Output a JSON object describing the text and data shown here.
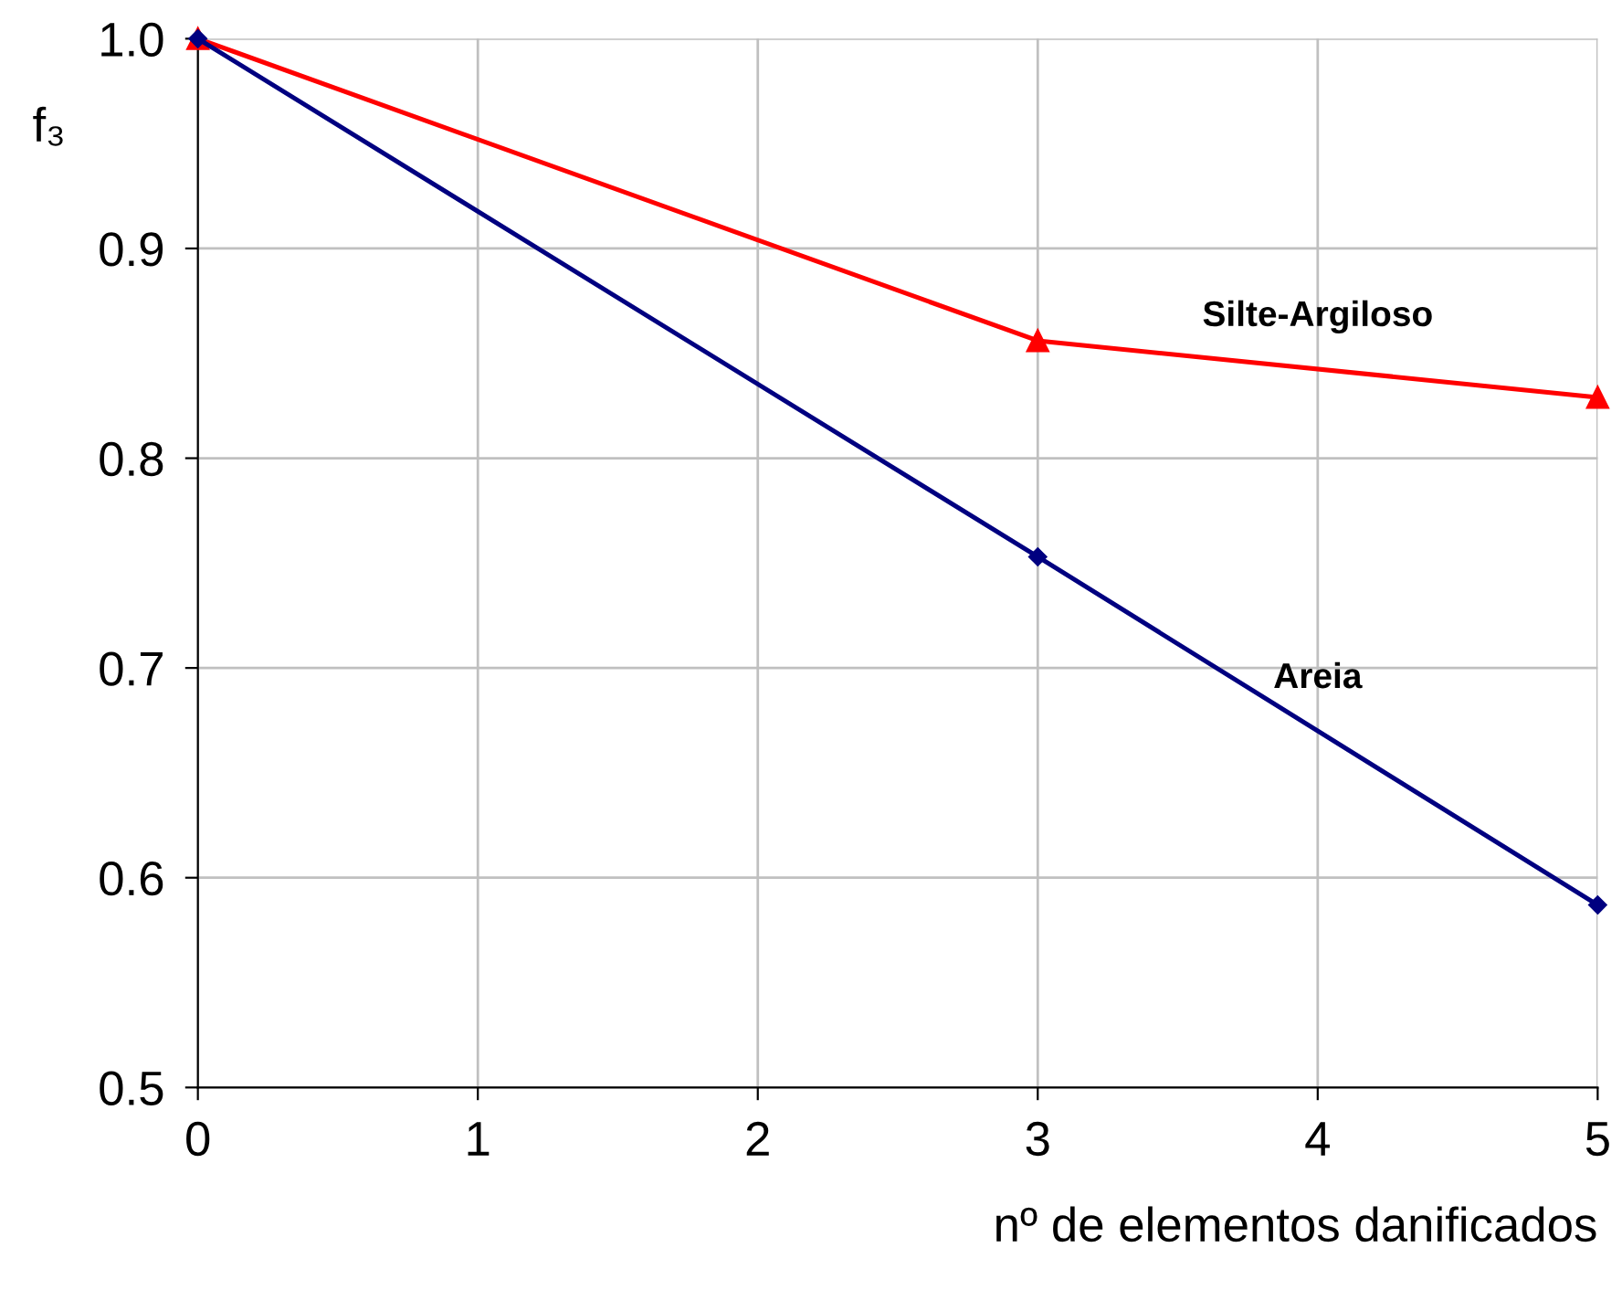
{
  "chart_data": {
    "type": "line",
    "xlabel": "nº de elementos danificados",
    "ylabel": "f₃",
    "x": [
      0,
      3,
      5
    ],
    "series": [
      {
        "name": "Silte-Argiloso",
        "color": "#ff0000",
        "values": [
          1.0,
          0.856,
          0.829
        ],
        "marker": "triangle"
      },
      {
        "name": "Areia",
        "color": "#000080",
        "values": [
          1.0,
          0.753,
          0.587
        ],
        "marker": "diamond"
      }
    ],
    "xlim": [
      0,
      5
    ],
    "xticks": [
      0,
      1,
      2,
      3,
      4,
      5
    ],
    "ylim": [
      0.5,
      1.0
    ],
    "yticks": [
      0.5,
      0.6,
      0.7,
      0.8,
      0.9,
      {
        "value": 1.0,
        "label": "1.0"
      }
    ],
    "grid": true,
    "line_style": "solid"
  }
}
